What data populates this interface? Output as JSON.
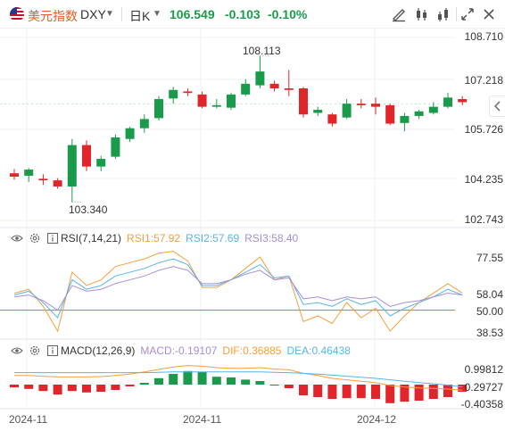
{
  "toolbar": {
    "symbol_name": "美元指数",
    "symbol_code": "DXY",
    "period": "日K",
    "price": "106.549",
    "change": "-0.103",
    "change_pct": "-0.10%",
    "icons": [
      "draw-icon",
      "candle-type-icon",
      "indicator-icon",
      "fullscreen-icon",
      "close-icon"
    ]
  },
  "main_chart": {
    "y_ticks": [
      "108.710",
      "107.218",
      "105.726",
      "104.235",
      "102.743"
    ],
    "high_label": "108.113",
    "low_label": "103.340"
  },
  "rsi": {
    "title": "RSI(7,14,21)",
    "rsi1": "RSI1:57.92",
    "rsi2": "RSI2:57.69",
    "rsi3": "RSI3:58.40",
    "y_ticks": [
      "77.55",
      "58.04",
      "50.00",
      "38.53"
    ]
  },
  "macd": {
    "title": "MACD(12,26,9)",
    "macd": "MACD:-0.19107",
    "dif": "DIF:0.36885",
    "dea": "DEA:0.46438",
    "y_ticks": [
      "0.99812",
      "0.29727",
      "-0.40358"
    ]
  },
  "x_axis": {
    "labels": [
      "2024-11",
      "2024-11",
      "2024-12"
    ]
  },
  "colors": {
    "up": "#1a9b4b",
    "down": "#e0262a",
    "rsi1": "#f5a03d",
    "rsi2": "#58b4e8",
    "rsi3": "#a68ed6",
    "dif": "#f5a03d",
    "dea": "#58b4e8",
    "price_up": "#1a9b4b"
  },
  "candles": [
    {
      "o": 104.28,
      "h": 104.42,
      "l": 104.07,
      "c": 104.17
    },
    {
      "o": 104.2,
      "h": 104.45,
      "l": 104.0,
      "c": 104.4
    },
    {
      "o": 104.1,
      "h": 104.25,
      "l": 103.9,
      "c": 104.05
    },
    {
      "o": 104.05,
      "h": 104.12,
      "l": 103.78,
      "c": 103.85
    },
    {
      "o": 103.85,
      "h": 105.4,
      "l": 103.34,
      "c": 105.2
    },
    {
      "o": 105.2,
      "h": 105.35,
      "l": 104.35,
      "c": 104.5
    },
    {
      "o": 104.5,
      "h": 104.85,
      "l": 104.35,
      "c": 104.75
    },
    {
      "o": 104.82,
      "h": 105.55,
      "l": 104.75,
      "c": 105.45
    },
    {
      "o": 105.4,
      "h": 105.8,
      "l": 105.3,
      "c": 105.75
    },
    {
      "o": 105.75,
      "h": 106.2,
      "l": 105.6,
      "c": 106.05
    },
    {
      "o": 106.08,
      "h": 106.8,
      "l": 106.0,
      "c": 106.7
    },
    {
      "o": 106.72,
      "h": 107.1,
      "l": 106.55,
      "c": 107.0
    },
    {
      "o": 106.95,
      "h": 107.05,
      "l": 106.8,
      "c": 106.9
    },
    {
      "o": 106.85,
      "h": 106.95,
      "l": 106.4,
      "c": 106.45
    },
    {
      "o": 106.45,
      "h": 106.7,
      "l": 106.4,
      "c": 106.5
    },
    {
      "o": 106.42,
      "h": 106.9,
      "l": 106.35,
      "c": 106.85
    },
    {
      "o": 106.85,
      "h": 107.35,
      "l": 106.8,
      "c": 107.2
    },
    {
      "o": 107.15,
      "h": 108.11,
      "l": 107.05,
      "c": 107.6
    },
    {
      "o": 107.2,
      "h": 107.3,
      "l": 106.95,
      "c": 107.05
    },
    {
      "o": 107.05,
      "h": 107.65,
      "l": 106.8,
      "c": 107.0
    },
    {
      "o": 107.05,
      "h": 107.1,
      "l": 106.1,
      "c": 106.2
    },
    {
      "o": 106.25,
      "h": 106.45,
      "l": 106.15,
      "c": 106.35
    },
    {
      "o": 106.2,
      "h": 106.25,
      "l": 105.8,
      "c": 105.9
    },
    {
      "o": 106.1,
      "h": 106.7,
      "l": 106.05,
      "c": 106.55
    },
    {
      "o": 106.55,
      "h": 106.7,
      "l": 106.4,
      "c": 106.5
    },
    {
      "o": 106.55,
      "h": 106.75,
      "l": 106.2,
      "c": 106.45
    },
    {
      "o": 106.5,
      "h": 106.55,
      "l": 105.85,
      "c": 105.9
    },
    {
      "o": 105.92,
      "h": 106.25,
      "l": 105.65,
      "c": 106.15
    },
    {
      "o": 106.15,
      "h": 106.35,
      "l": 106.05,
      "c": 106.3
    },
    {
      "o": 106.25,
      "h": 106.6,
      "l": 106.2,
      "c": 106.45
    },
    {
      "o": 106.45,
      "h": 106.9,
      "l": 106.4,
      "c": 106.75
    },
    {
      "o": 106.7,
      "h": 106.8,
      "l": 106.5,
      "c": 106.6
    }
  ],
  "rsi_series": {
    "rsi1": [
      59,
      61,
      52,
      39,
      70,
      63,
      66,
      73,
      75,
      77,
      80,
      81,
      76,
      62,
      62,
      66,
      72,
      78,
      66,
      68,
      44,
      47,
      43,
      54,
      46,
      51,
      39,
      47,
      54,
      59,
      64,
      59
    ],
    "rsi2": [
      58,
      60,
      54,
      46,
      66,
      61,
      63,
      68,
      70,
      72,
      75,
      77,
      74,
      63,
      63,
      66,
      70,
      74,
      67,
      68,
      53,
      54,
      52,
      56,
      53,
      55,
      47,
      51,
      54,
      57,
      61,
      58
    ],
    "rsi3": [
      57,
      58,
      55,
      50,
      63,
      60,
      61,
      64,
      66,
      68,
      71,
      73,
      71,
      64,
      64,
      66,
      69,
      71,
      66,
      67,
      56,
      57,
      55,
      57,
      56,
      57,
      52,
      54,
      55,
      57,
      59,
      58
    ]
  },
  "macd_series": {
    "hist": [
      -0.08,
      -0.12,
      -0.18,
      -0.28,
      -0.18,
      -0.22,
      -0.2,
      -0.15,
      -0.05,
      0.05,
      0.18,
      0.3,
      0.38,
      0.35,
      0.22,
      0.2,
      0.14,
      0.1,
      -0.02,
      -0.1,
      -0.3,
      -0.35,
      -0.4,
      -0.38,
      -0.38,
      -0.4,
      -0.52,
      -0.48,
      -0.45,
      -0.4,
      -0.35,
      -0.2
    ],
    "dif": [
      0.78,
      0.78,
      0.76,
      0.74,
      0.74,
      0.74,
      0.75,
      0.78,
      0.82,
      0.88,
      0.95,
      1.02,
      1.06,
      1.04,
      1.0,
      0.98,
      0.98,
      1.0,
      0.96,
      0.94,
      0.84,
      0.78,
      0.7,
      0.66,
      0.62,
      0.58,
      0.5,
      0.46,
      0.43,
      0.42,
      0.4,
      0.37
    ],
    "dea": [
      0.86,
      0.86,
      0.86,
      0.86,
      0.86,
      0.86,
      0.86,
      0.86,
      0.86,
      0.86,
      0.87,
      0.88,
      0.88,
      0.88,
      0.88,
      0.88,
      0.88,
      0.88,
      0.87,
      0.86,
      0.84,
      0.82,
      0.79,
      0.76,
      0.73,
      0.7,
      0.66,
      0.62,
      0.58,
      0.55,
      0.51,
      0.46
    ]
  }
}
